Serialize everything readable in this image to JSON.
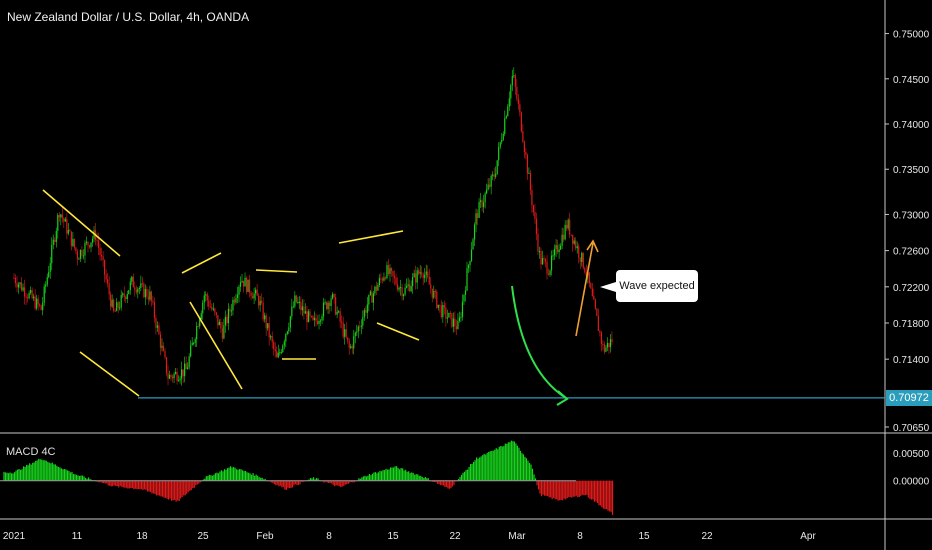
{
  "header": {
    "title": "New Zealand Dollar / U.S. Dollar, 4h, OANDA"
  },
  "annotations": {
    "callout_text": "Wave expected",
    "current_price": "0.70972"
  },
  "indicator": {
    "name": "MACD 4C",
    "ticks": [
      "0.00500",
      "0.00000"
    ]
  },
  "colors": {
    "up": "#17d61c",
    "down": "#e11b1b",
    "pattern": "#ffe83b",
    "curve_arrow": "#2ee04a",
    "target_arrow": "#f0a030",
    "support_line": "#2a9dbd",
    "background": "#000000"
  },
  "chart_data": [
    {
      "type": "candlestick",
      "title": "New Zealand Dollar / U.S. Dollar, 4h, OANDA",
      "x_ticks": [
        "2021",
        "11",
        "18",
        "25",
        "Feb",
        "8",
        "15",
        "22",
        "Mar",
        "8",
        "15",
        "22",
        "Apr"
      ],
      "y_ticks": [
        "0.75000",
        "0.74500",
        "0.74000",
        "0.73500",
        "0.73000",
        "0.72600",
        "0.72200",
        "0.71800",
        "0.71400",
        "0.70650"
      ],
      "ylim": [
        0.7065,
        0.7515
      ],
      "support_level": 0.70972,
      "path_keypoints": [
        {
          "date": "2021-01-01",
          "price": 0.723
        },
        {
          "date": "2021-01-04",
          "price": 0.7195
        },
        {
          "date": "2021-01-06",
          "price": 0.7305
        },
        {
          "date": "2021-01-08",
          "price": 0.7255
        },
        {
          "date": "2021-01-10",
          "price": 0.7278
        },
        {
          "date": "2021-01-12",
          "price": 0.719
        },
        {
          "date": "2021-01-14",
          "price": 0.7225
        },
        {
          "date": "2021-01-16",
          "price": 0.721
        },
        {
          "date": "2021-01-18",
          "price": 0.712
        },
        {
          "date": "2021-01-20",
          "price": 0.7128
        },
        {
          "date": "2021-01-22",
          "price": 0.7212
        },
        {
          "date": "2021-01-24",
          "price": 0.717
        },
        {
          "date": "2021-01-26",
          "price": 0.723
        },
        {
          "date": "2021-01-28",
          "price": 0.7205
        },
        {
          "date": "2021-01-30",
          "price": 0.7138
        },
        {
          "date": "2021-02-01",
          "price": 0.7205
        },
        {
          "date": "2021-02-03",
          "price": 0.7178
        },
        {
          "date": "2021-02-05",
          "price": 0.721
        },
        {
          "date": "2021-02-07",
          "price": 0.715
        },
        {
          "date": "2021-02-09",
          "price": 0.7202
        },
        {
          "date": "2021-02-11",
          "price": 0.7238
        },
        {
          "date": "2021-02-13",
          "price": 0.7215
        },
        {
          "date": "2021-02-15",
          "price": 0.724
        },
        {
          "date": "2021-02-17",
          "price": 0.7195
        },
        {
          "date": "2021-02-19",
          "price": 0.7175
        },
        {
          "date": "2021-02-21",
          "price": 0.73
        },
        {
          "date": "2021-02-23",
          "price": 0.7345
        },
        {
          "date": "2021-02-25",
          "price": 0.7455
        },
        {
          "date": "2021-02-26",
          "price": 0.7395
        },
        {
          "date": "2021-02-28",
          "price": 0.725
        },
        {
          "date": "2021-03-01",
          "price": 0.724
        },
        {
          "date": "2021-03-03",
          "price": 0.729
        },
        {
          "date": "2021-03-05",
          "price": 0.724
        },
        {
          "date": "2021-03-07",
          "price": 0.715
        },
        {
          "date": "2021-03-08",
          "price": 0.7162
        }
      ]
    },
    {
      "type": "bar",
      "title": "MACD 4C",
      "ylim": [
        -0.0065,
        0.008
      ],
      "y_ticks": [
        "0.00500",
        "0.00000"
      ],
      "hist_keypoints": [
        {
          "date": "2021-01-01",
          "value": 0.0015
        },
        {
          "date": "2021-01-04",
          "value": 0.004
        },
        {
          "date": "2021-01-08",
          "value": 0.001
        },
        {
          "date": "2021-01-12",
          "value": -0.001
        },
        {
          "date": "2021-01-15",
          "value": -0.0015
        },
        {
          "date": "2021-01-19",
          "value": -0.0038
        },
        {
          "date": "2021-01-22",
          "value": 0.0005
        },
        {
          "date": "2021-01-25",
          "value": 0.0025
        },
        {
          "date": "2021-01-28",
          "value": 0.0008
        },
        {
          "date": "2021-01-31",
          "value": -0.0015
        },
        {
          "date": "2021-02-03",
          "value": 0.0005
        },
        {
          "date": "2021-02-06",
          "value": -0.0012
        },
        {
          "date": "2021-02-09",
          "value": 0.001
        },
        {
          "date": "2021-02-12",
          "value": 0.0025
        },
        {
          "date": "2021-02-15",
          "value": 0.0008
        },
        {
          "date": "2021-02-18",
          "value": -0.0015
        },
        {
          "date": "2021-02-21",
          "value": 0.004
        },
        {
          "date": "2021-02-23",
          "value": 0.0055
        },
        {
          "date": "2021-02-25",
          "value": 0.0072
        },
        {
          "date": "2021-02-27",
          "value": 0.003
        },
        {
          "date": "2021-02-28",
          "value": -0.0025
        },
        {
          "date": "2021-03-02",
          "value": -0.0035
        },
        {
          "date": "2021-03-05",
          "value": -0.0025
        },
        {
          "date": "2021-03-08",
          "value": -0.006
        }
      ]
    }
  ]
}
